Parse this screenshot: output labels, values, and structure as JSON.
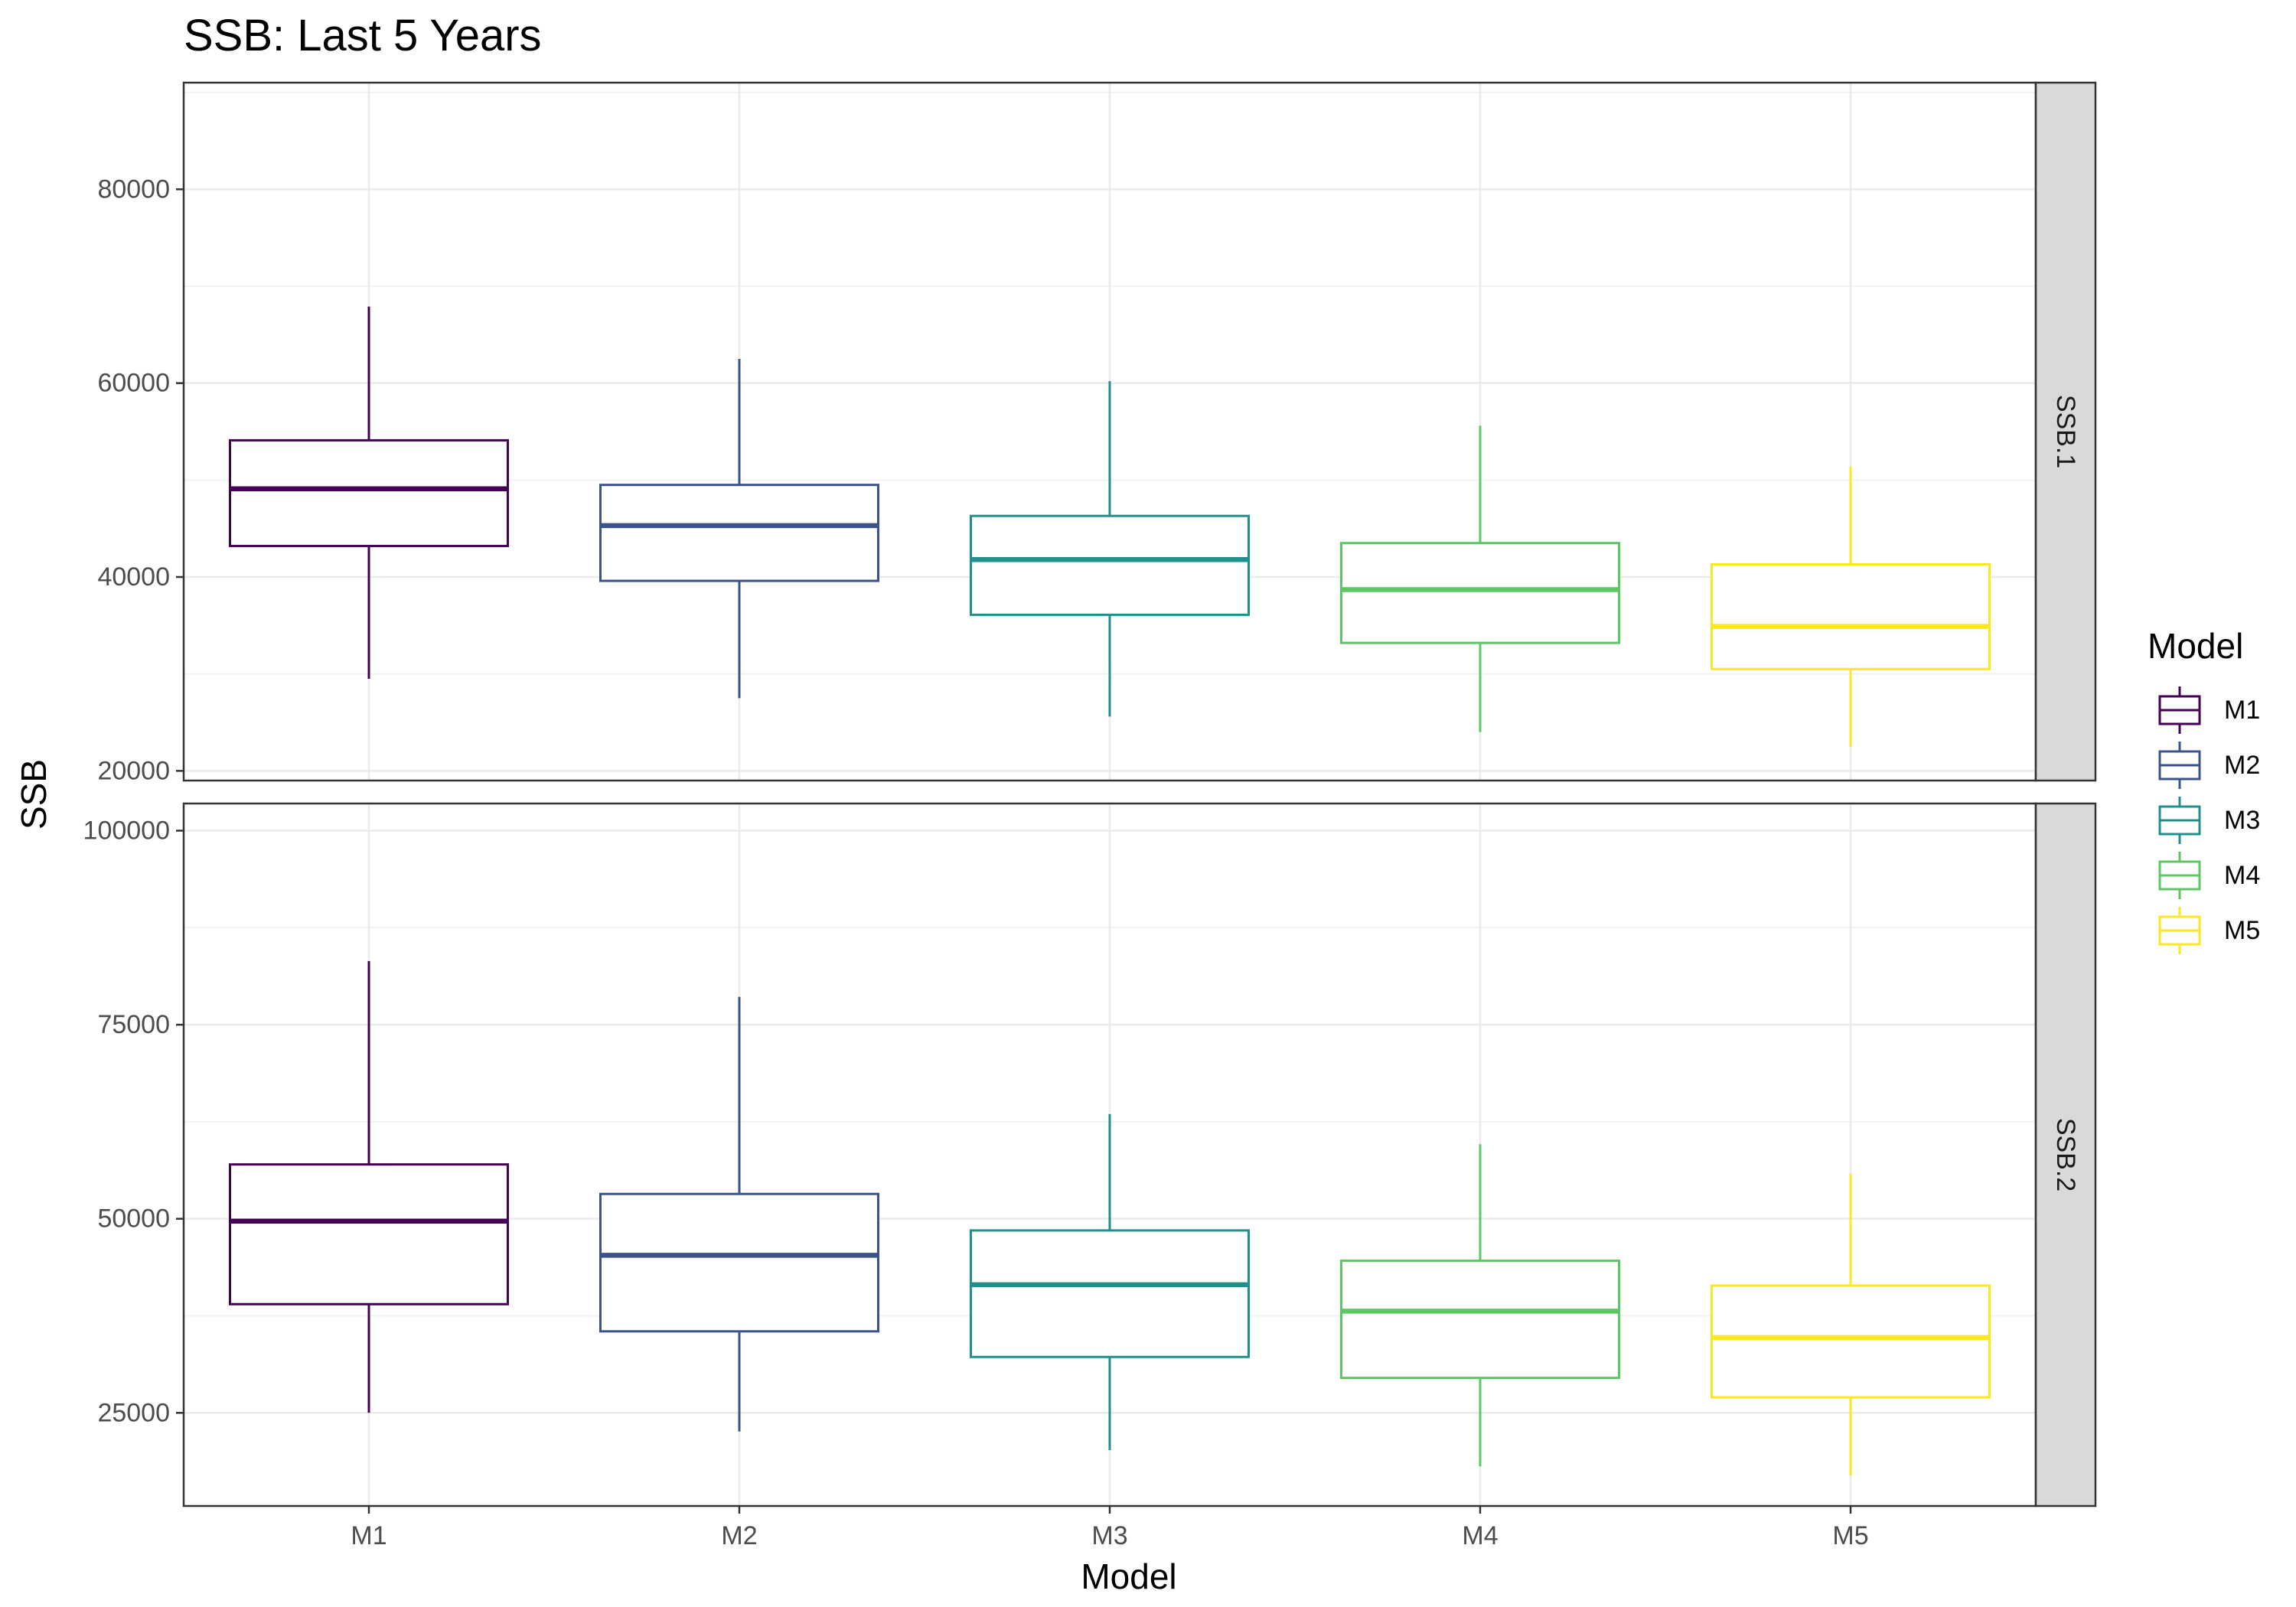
{
  "chart_data": {
    "type": "box",
    "title": "SSB: Last 5 Years",
    "xlabel": "Model",
    "ylabel": "SSB",
    "categories": [
      "M1",
      "M2",
      "M3",
      "M4",
      "M5"
    ],
    "colors": [
      "#440154",
      "#3b528b",
      "#21908c",
      "#5dc863",
      "#fde725"
    ],
    "legend": {
      "title": "Model",
      "position": "right",
      "entries": [
        "M1",
        "M2",
        "M3",
        "M4",
        "M5"
      ]
    },
    "grid": true,
    "panels": [
      {
        "strip": "SSB.1",
        "ylim": [
          19000,
          91000
        ],
        "yticks": [
          20000,
          40000,
          60000,
          80000
        ],
        "ytick_labels": [
          "20000",
          "40000",
          "60000",
          "80000"
        ],
        "boxes": [
          {
            "model": "M1",
            "min": 29500,
            "q1": 43200,
            "median": 49100,
            "q3": 54100,
            "max": 67900
          },
          {
            "model": "M2",
            "min": 27500,
            "q1": 39600,
            "median": 45300,
            "q3": 49500,
            "max": 62500
          },
          {
            "model": "M3",
            "min": 25600,
            "q1": 36100,
            "median": 41800,
            "q3": 46300,
            "max": 60200
          },
          {
            "model": "M4",
            "min": 24000,
            "q1": 33200,
            "median": 38700,
            "q3": 43500,
            "max": 55600
          },
          {
            "model": "M5",
            "min": 22500,
            "q1": 30500,
            "median": 34900,
            "q3": 41300,
            "max": 51400
          }
        ]
      },
      {
        "strip": "SSB.2",
        "ylim": [
          13000,
          103500
        ],
        "yticks": [
          25000,
          50000,
          75000,
          100000
        ],
        "ytick_labels": [
          "25000",
          "50000",
          "75000",
          "100000"
        ],
        "boxes": [
          {
            "model": "M1",
            "min": 25000,
            "q1": 39000,
            "median": 49700,
            "q3": 57000,
            "max": 83200
          },
          {
            "model": "M2",
            "min": 22600,
            "q1": 35500,
            "median": 45300,
            "q3": 53200,
            "max": 78600
          },
          {
            "model": "M3",
            "min": 20200,
            "q1": 32200,
            "median": 41500,
            "q3": 48500,
            "max": 63500
          },
          {
            "model": "M4",
            "min": 18100,
            "q1": 29500,
            "median": 38100,
            "q3": 44600,
            "max": 59600
          },
          {
            "model": "M5",
            "min": 16900,
            "q1": 27000,
            "median": 34700,
            "q3": 41400,
            "max": 55800
          }
        ]
      }
    ]
  }
}
